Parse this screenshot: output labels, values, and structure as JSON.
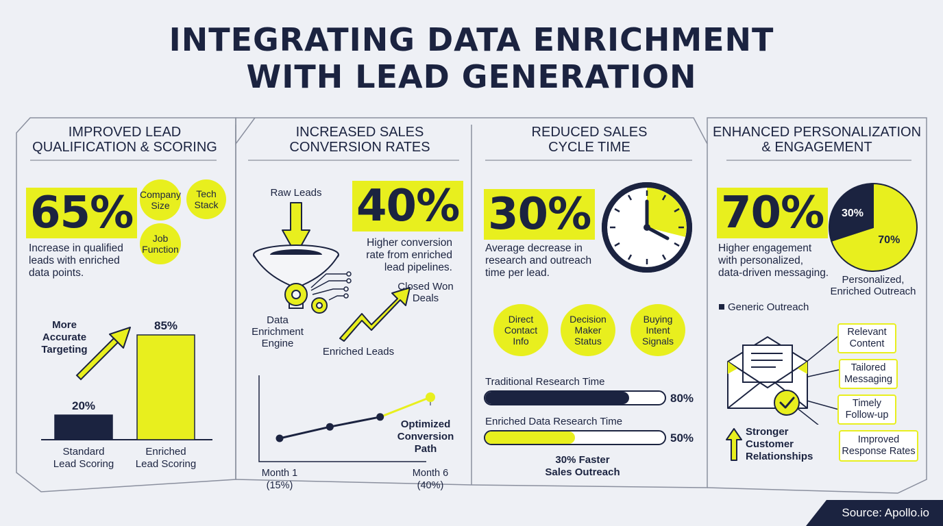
{
  "title_line1": "INTEGRATING DATA ENRICHMENT",
  "title_line2": "WITH LEAD GENERATION",
  "colors": {
    "navy": "#1b2340",
    "yellow": "#e8ef1e",
    "background": "#eef0f5"
  },
  "sections": [
    {
      "heading_line1": "IMPROVED LEAD",
      "heading_line2": "QUALIFICATION & SCORING",
      "stat": "65%",
      "desc": [
        "Increase in qualified",
        "leads with enriched",
        "data points."
      ],
      "circles": [
        [
          "Company",
          "Size"
        ],
        [
          "Tech",
          "Stack"
        ],
        [
          "Job",
          "Function"
        ]
      ],
      "arrow_label": [
        "More",
        "Accurate",
        "Targeting"
      ]
    },
    {
      "heading_line1": "INCREASED SALES",
      "heading_line2": "CONVERSION RATES",
      "stat": "40%",
      "desc": [
        "Higher conversion",
        "rate from enriched",
        "lead pipelines."
      ],
      "raw_leads": "Raw Leads",
      "engine": [
        "Data",
        "Enrichment",
        "Engine"
      ],
      "enriched": "Enriched Leads",
      "closed": [
        "Closed Won",
        "Deals"
      ],
      "path_label": [
        "Optimized",
        "Conversion",
        "Path"
      ]
    },
    {
      "heading_line1": "REDUCED SALES",
      "heading_line2": "CYCLE TIME",
      "stat": "30%",
      "desc": [
        "Average decrease in",
        "research and outreach",
        "time per lead."
      ],
      "circles": [
        [
          "Direct",
          "Contact",
          "Info"
        ],
        [
          "Decision",
          "Maker",
          "Status"
        ],
        [
          "Buying",
          "Intent",
          "Signals"
        ]
      ],
      "bars": [
        {
          "label": "Traditional Research Time",
          "value": 80,
          "value_label": "80%",
          "color": "#1b2340"
        },
        {
          "label": "Enriched Data Research Time",
          "value": 50,
          "value_label": "50%",
          "color": "#e8ef1e"
        }
      ],
      "footer": [
        "30% Faster",
        "Sales Outreach"
      ]
    },
    {
      "heading_line1": "ENHANCED PERSONALIZATION",
      "heading_line2": "& ENGAGEMENT",
      "stat": "70%",
      "desc": [
        "Higher engagement",
        "with personalized,",
        "data-driven messaging."
      ],
      "pie_label": [
        "Personalized,",
        "Enriched Outreach"
      ],
      "legend_generic": "Generic Outreach",
      "boxes": [
        [
          "Relevant",
          "Content"
        ],
        [
          "Tailored",
          "Messaging"
        ],
        [
          "Timely",
          "Follow-up"
        ],
        [
          "Improved",
          "Response Rates"
        ]
      ],
      "relationships": [
        "Stronger",
        "Customer",
        "Relationships"
      ]
    }
  ],
  "source": "Source: Apollo.io",
  "chart_data": [
    {
      "type": "bar",
      "categories": [
        "Standard Lead Scoring",
        "Enriched Lead Scoring"
      ],
      "category_lines": [
        [
          "Standard",
          "Lead Scoring"
        ],
        [
          "Enriched",
          "Lead Scoring"
        ]
      ],
      "values": [
        20,
        85
      ],
      "value_labels": [
        "20%",
        "85%"
      ],
      "ylim": [
        0,
        100
      ]
    },
    {
      "type": "line",
      "x": [
        1,
        2,
        3,
        4
      ],
      "values": [
        15,
        22,
        28,
        40
      ],
      "tick_labels": [
        [
          "Month 1",
          "(15%)"
        ],
        [
          "Month 6",
          "(40%)"
        ]
      ],
      "ylim": [
        10,
        45
      ]
    },
    {
      "type": "pie",
      "labels": [
        "Personalized, Enriched Outreach",
        "Generic Outreach"
      ],
      "values": [
        70,
        30
      ],
      "value_labels": [
        "70%",
        "30%"
      ]
    }
  ]
}
